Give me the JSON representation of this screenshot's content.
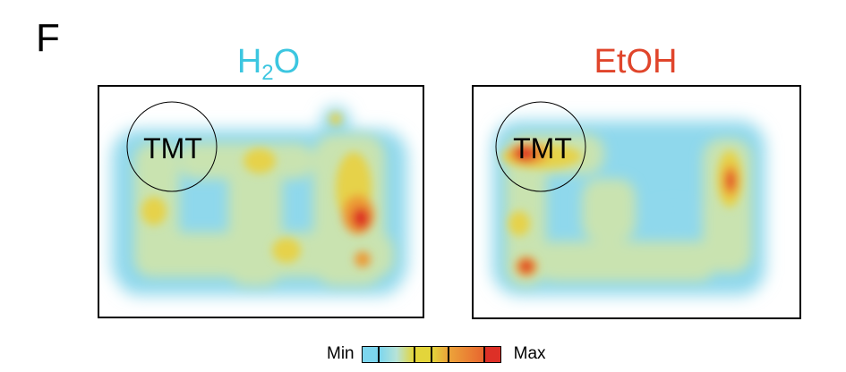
{
  "figure": {
    "panel_letter": "F",
    "panels": [
      {
        "title_main": "H",
        "title_sub": "2",
        "title_tail": "O",
        "title_color": "#3cc6e0",
        "zone_label": "TMT",
        "hotspot_positions_note": "",
        "hotspots": [
          {
            "intensity": 1.0
          },
          {
            "intensity": 0.75
          },
          {
            "intensity": 0.55
          },
          {
            "intensity": 0.55
          },
          {
            "intensity": 0.5
          },
          {
            "intensity": 0.45
          }
        ]
      },
      {
        "title_main": "EtOH",
        "title_sub": "",
        "title_tail": "",
        "title_color": "#e0452b",
        "zone_label": "TMT",
        "hotspot_positions_note": "",
        "hotspots": [
          {
            "intensity": 0.9
          },
          {
            "intensity": 0.85
          },
          {
            "intensity": 0.75
          },
          {
            "intensity": 0.5
          }
        ]
      }
    ],
    "legend": {
      "min_label": "Min",
      "max_label": "Max",
      "colors": [
        "#7dd6ee",
        "#b7e3d7",
        "#e3d53b",
        "#eca33a",
        "#e8662f",
        "#dd3027"
      ]
    }
  }
}
